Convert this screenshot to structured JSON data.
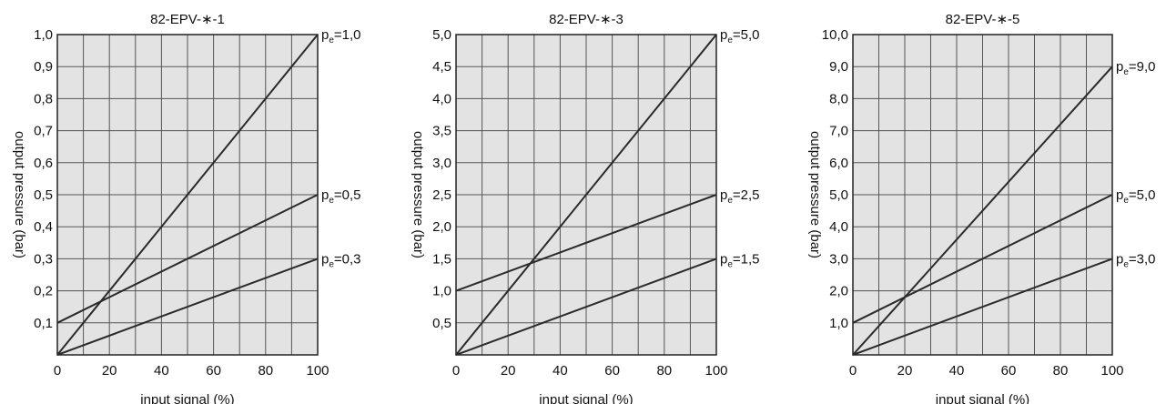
{
  "chart_data": [
    {
      "type": "line",
      "title": "82-EPV-∗-1",
      "xlabel": "input signal (%)",
      "ylabel": "output pressure (bar)",
      "xlim": [
        0,
        100
      ],
      "ylim": [
        0,
        1.0
      ],
      "x_ticks": [
        "0",
        "20",
        "40",
        "60",
        "80",
        "100"
      ],
      "y_ticks": [
        "",
        "0,1",
        "0,2",
        "0,3",
        "0,4",
        "0,5",
        "0,6",
        "0,7",
        "0,8",
        "0,9",
        "1,0"
      ],
      "grid": true,
      "series": [
        {
          "label": "=1,0",
          "x": [
            0,
            100
          ],
          "y": [
            0,
            1.0
          ]
        },
        {
          "label": "=0,5",
          "x": [
            0,
            100
          ],
          "y": [
            0.1,
            0.5
          ]
        },
        {
          "label": "=0,3",
          "x": [
            0,
            100
          ],
          "y": [
            0,
            0.3
          ]
        }
      ]
    },
    {
      "type": "line",
      "title": "82-EPV-∗-3",
      "xlabel": "input signal (%)",
      "ylabel": "output pressure (bar)",
      "xlim": [
        0,
        100
      ],
      "ylim": [
        0,
        5.0
      ],
      "x_ticks": [
        "0",
        "20",
        "40",
        "60",
        "80",
        "100"
      ],
      "y_ticks": [
        "",
        "0,5",
        "1,0",
        "1,5",
        "2,0",
        "2,5",
        "3,0",
        "3,5",
        "4,0",
        "4,5",
        "5,0"
      ],
      "grid": true,
      "series": [
        {
          "label": "=5,0",
          "x": [
            0,
            100
          ],
          "y": [
            0,
            5.0
          ]
        },
        {
          "label": "=2,5",
          "x": [
            0,
            100
          ],
          "y": [
            1.0,
            2.5
          ]
        },
        {
          "label": "=1,5",
          "x": [
            0,
            100
          ],
          "y": [
            0,
            1.5
          ]
        }
      ]
    },
    {
      "type": "line",
      "title": "82-EPV-∗-5",
      "xlabel": "input signal  (%)",
      "ylabel": "output pressure (bar)",
      "xlim": [
        0,
        100
      ],
      "ylim": [
        0,
        10.0
      ],
      "x_ticks": [
        "0",
        "20",
        "40",
        "60",
        "80",
        "100"
      ],
      "y_ticks": [
        "",
        "1,0",
        "2,0",
        "3,0",
        "4,0",
        "5,0",
        "6,0",
        "7,0",
        "8,0",
        "9,0",
        "10,0"
      ],
      "grid": true,
      "series": [
        {
          "label": "=9,0",
          "x": [
            0,
            100
          ],
          "y": [
            0,
            9.0
          ]
        },
        {
          "label": "=5,0",
          "x": [
            0,
            100
          ],
          "y": [
            1.0,
            5.0
          ]
        },
        {
          "label": "=3,0",
          "x": [
            0,
            100
          ],
          "y": [
            0,
            3.0
          ]
        }
      ]
    }
  ],
  "series_label_prefix": "p",
  "series_label_subscript": "e",
  "colors": {
    "plot_background": "#e3e3e3",
    "grid": "#555555",
    "line": "#2a2a2a",
    "frame": "#222222"
  }
}
